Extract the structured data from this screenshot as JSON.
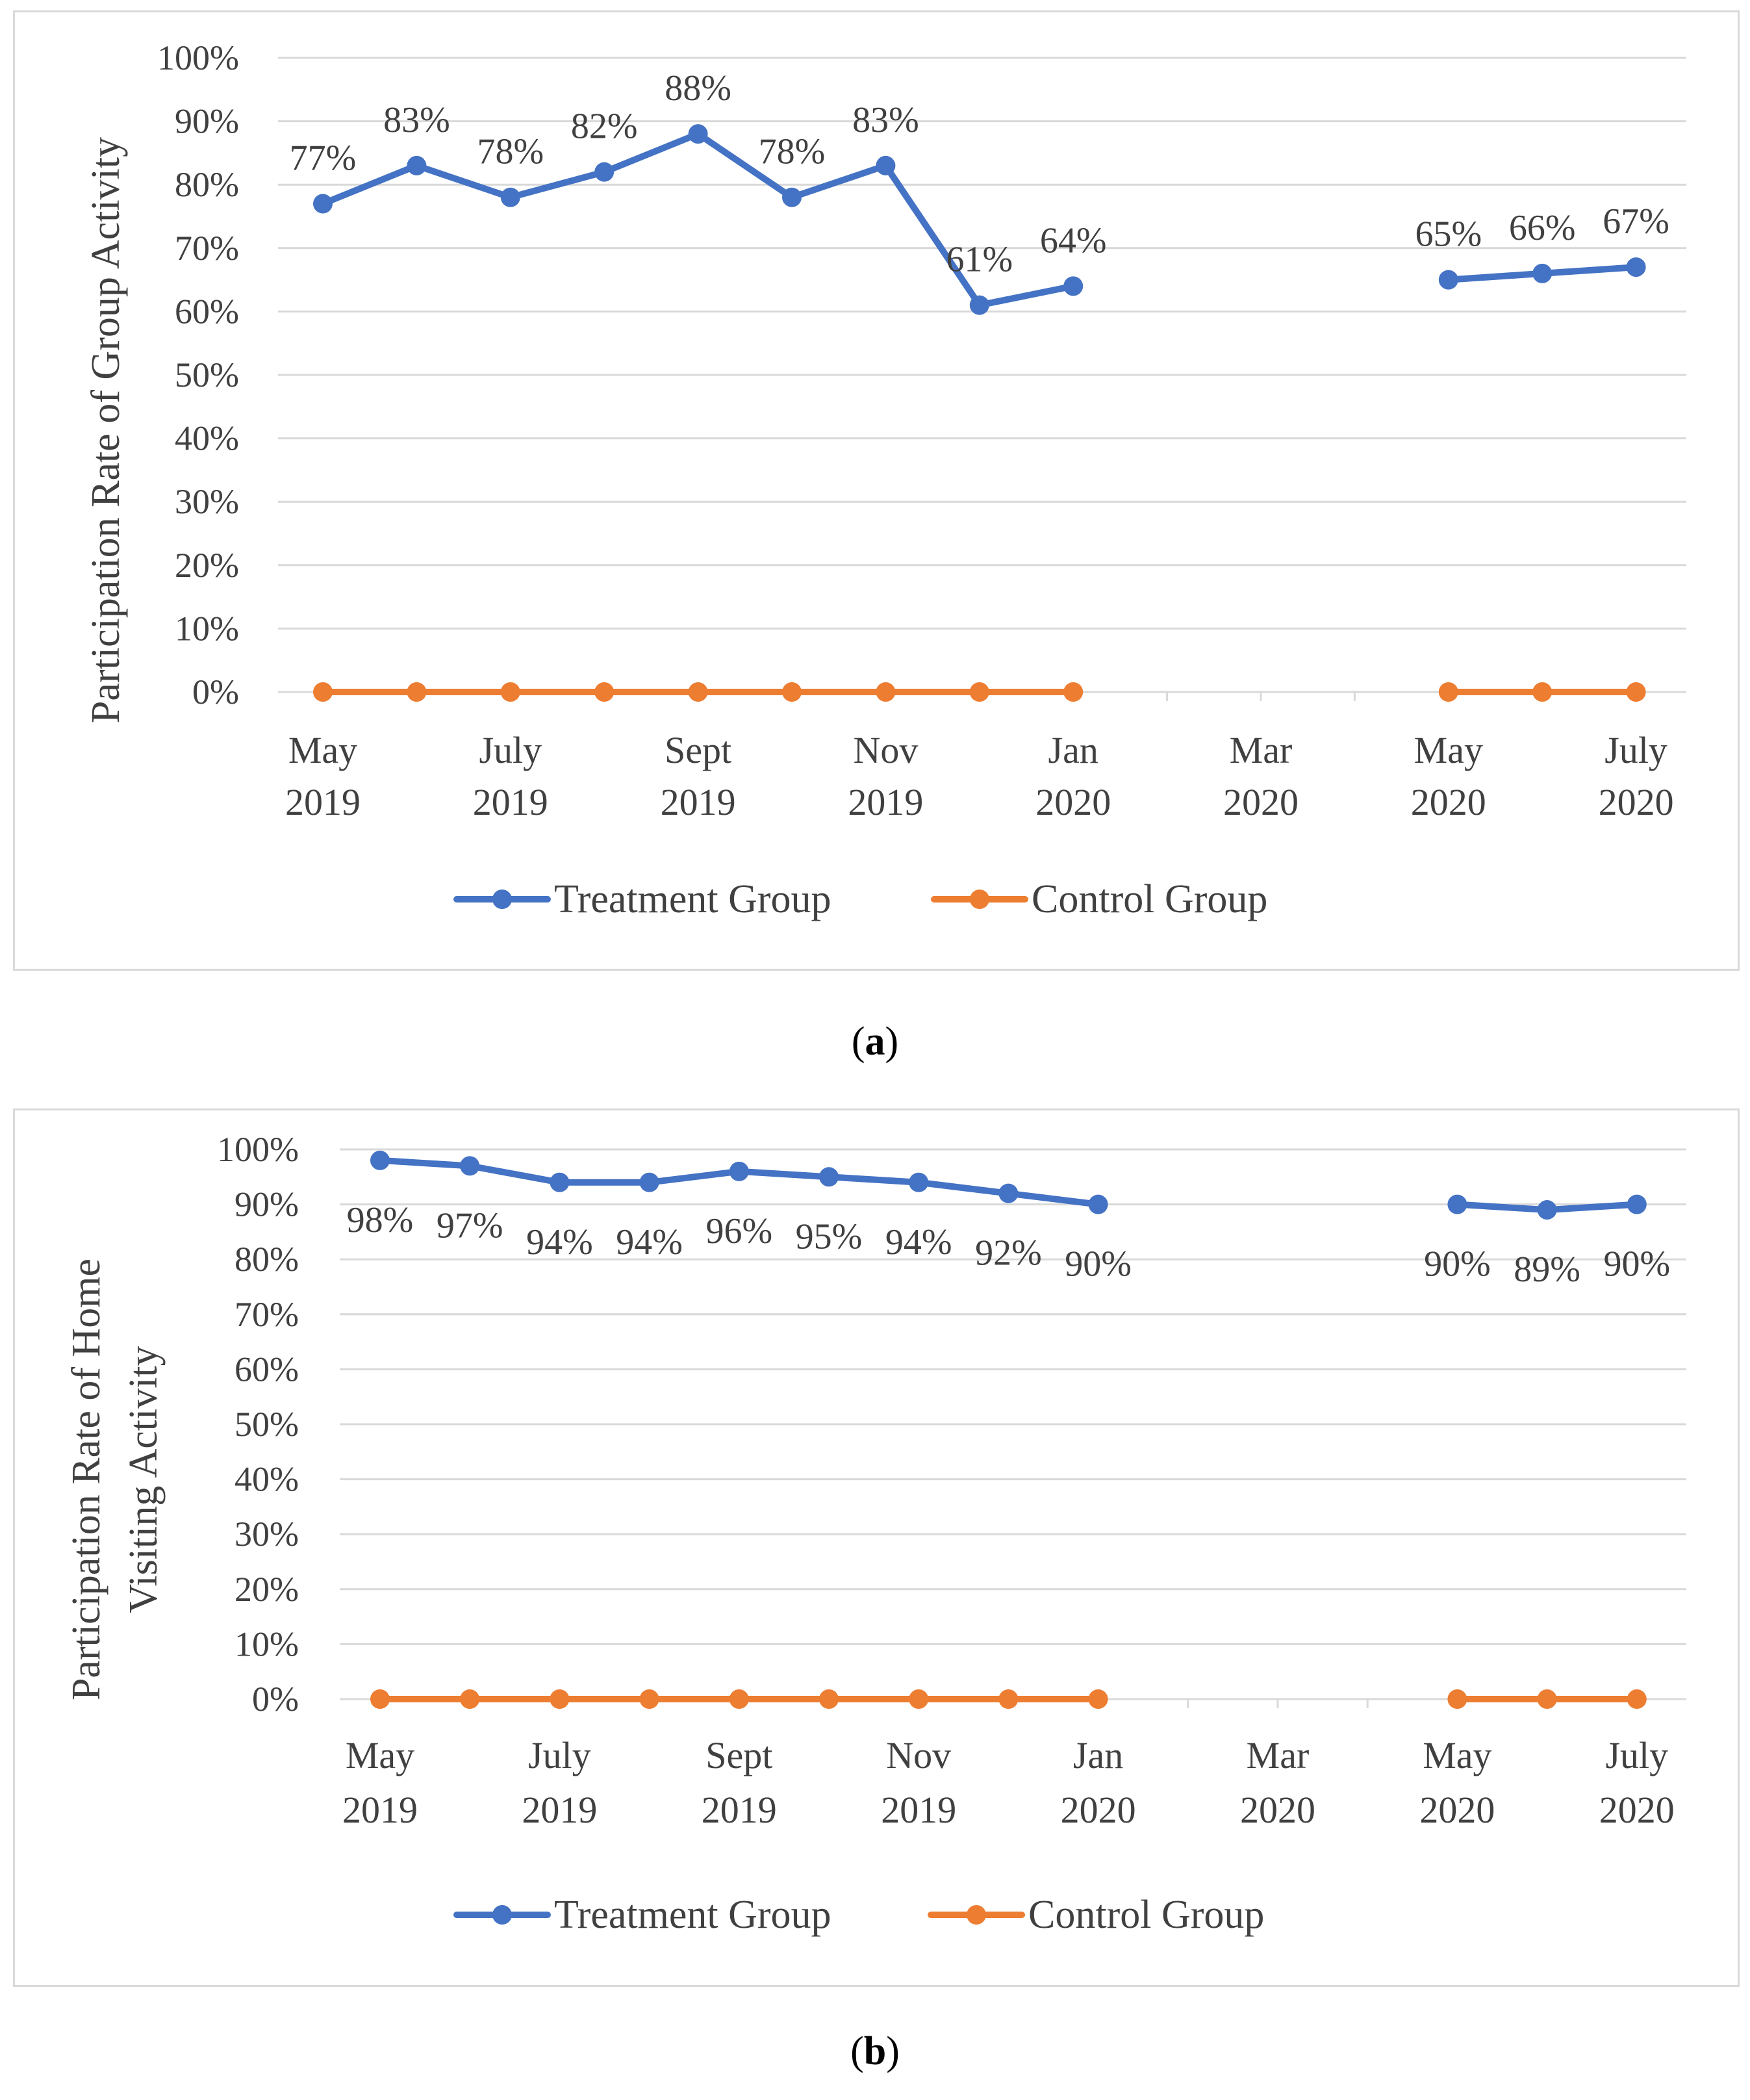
{
  "chart_data": [
    {
      "type": "line",
      "panel": "(a)",
      "ylabel": "Participation Rate of Group Activity",
      "ylim": [
        0,
        100
      ],
      "yticks": [
        "0%",
        "10%",
        "20%",
        "30%",
        "40%",
        "50%",
        "60%",
        "70%",
        "80%",
        "90%",
        "100%"
      ],
      "xticks": [
        {
          "line1": "May",
          "line2": "2019"
        },
        {
          "line1": "July",
          "line2": "2019"
        },
        {
          "line1": "Sept",
          "line2": "2019"
        },
        {
          "line1": "Nov",
          "line2": "2019"
        },
        {
          "line1": "Jan",
          "line2": "2020"
        },
        {
          "line1": "Mar",
          "line2": "2020"
        },
        {
          "line1": "May",
          "line2": "2020"
        },
        {
          "line1": "July",
          "line2": "2020"
        }
      ],
      "x": [
        "May 2019",
        "Jun 2019",
        "Jul 2019",
        "Aug 2019",
        "Sep 2019",
        "Oct 2019",
        "Nov 2019",
        "Dec 2019",
        "Jan 2020",
        "Feb 2020",
        "Mar 2020",
        "Apr 2020",
        "May 2020",
        "Jun 2020",
        "Jul 2020"
      ],
      "series": [
        {
          "name": "Treatment Group",
          "color": "#4472c4",
          "values": [
            77,
            83,
            78,
            82,
            88,
            78,
            83,
            61,
            64,
            null,
            null,
            null,
            65,
            66,
            67
          ],
          "labels": [
            "77%",
            "83%",
            "78%",
            "82%",
            "88%",
            "78%",
            "83%",
            "61%",
            "64%",
            null,
            null,
            null,
            "65%",
            "66%",
            "67%"
          ]
        },
        {
          "name": "Control Group",
          "color": "#ed7d31",
          "values": [
            0,
            0,
            0,
            0,
            0,
            0,
            0,
            0,
            0,
            null,
            null,
            null,
            0,
            0,
            0
          ]
        }
      ],
      "grid": true,
      "legend": "bottom"
    },
    {
      "type": "line",
      "panel": "(b)",
      "ylabel_lines": [
        "Participation Rate of Home",
        "Visiting Activity"
      ],
      "ylim": [
        0,
        100
      ],
      "yticks": [
        "0%",
        "10%",
        "20%",
        "30%",
        "40%",
        "50%",
        "60%",
        "70%",
        "80%",
        "90%",
        "100%"
      ],
      "xticks": [
        {
          "line1": "May",
          "line2": "2019"
        },
        {
          "line1": "July",
          "line2": "2019"
        },
        {
          "line1": "Sept",
          "line2": "2019"
        },
        {
          "line1": "Nov",
          "line2": "2019"
        },
        {
          "line1": "Jan",
          "line2": "2020"
        },
        {
          "line1": "Mar",
          "line2": "2020"
        },
        {
          "line1": "May",
          "line2": "2020"
        },
        {
          "line1": "July",
          "line2": "2020"
        }
      ],
      "x": [
        "May 2019",
        "Jun 2019",
        "Jul 2019",
        "Aug 2019",
        "Sep 2019",
        "Oct 2019",
        "Nov 2019",
        "Dec 2019",
        "Jan 2020",
        "Feb 2020",
        "Mar 2020",
        "Apr 2020",
        "May 2020",
        "Jun 2020",
        "Jul 2020"
      ],
      "series": [
        {
          "name": "Treatment Group",
          "color": "#4472c4",
          "values": [
            98,
            97,
            94,
            94,
            96,
            95,
            94,
            92,
            90,
            null,
            null,
            null,
            90,
            89,
            90
          ],
          "labels": [
            "98%",
            "97%",
            "94%",
            "94%",
            "96%",
            "95%",
            "94%",
            "92%",
            "90%",
            null,
            null,
            null,
            "90%",
            "89%",
            "90%"
          ]
        },
        {
          "name": "Control Group",
          "color": "#ed7d31",
          "values": [
            0,
            0,
            0,
            0,
            0,
            0,
            0,
            0,
            0,
            null,
            null,
            null,
            0,
            0,
            0
          ]
        }
      ],
      "grid": true,
      "legend": "bottom"
    }
  ],
  "captions": {
    "a": "a",
    "b": "b"
  }
}
